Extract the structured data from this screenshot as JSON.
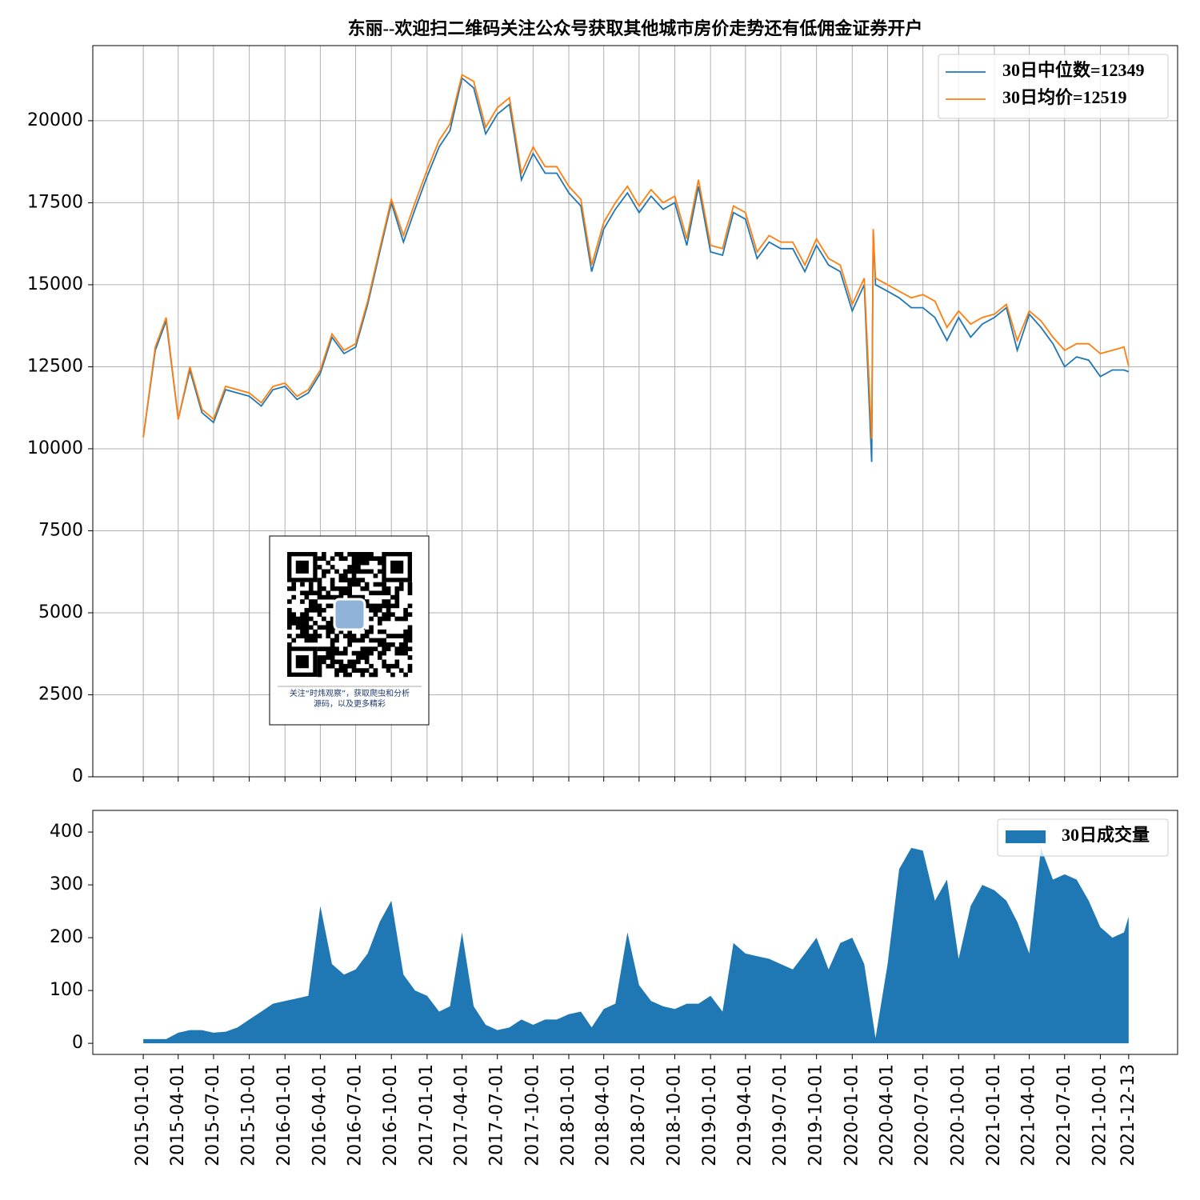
{
  "chart_data": [
    {
      "type": "line",
      "title": "东丽--欢迎扫二维码关注公众号获取其他城市房价走势还有低佣金证券开户",
      "annotation": [
        "关注“时炜观察”，获取爬虫和分析",
        "源码，以及更多精彩"
      ],
      "x": [
        "2015-01-01",
        "2015-02-01",
        "2015-03-01",
        "2015-04-01",
        "2015-05-01",
        "2015-06-01",
        "2015-07-01",
        "2015-08-01",
        "2015-09-01",
        "2015-10-01",
        "2015-11-01",
        "2015-12-01",
        "2016-01-01",
        "2016-02-01",
        "2016-03-01",
        "2016-04-01",
        "2016-05-01",
        "2016-06-01",
        "2016-07-01",
        "2016-08-01",
        "2016-09-01",
        "2016-10-01",
        "2016-11-01",
        "2016-12-01",
        "2017-01-01",
        "2017-02-01",
        "2017-03-01",
        "2017-04-01",
        "2017-05-01",
        "2017-06-01",
        "2017-07-01",
        "2017-08-01",
        "2017-09-01",
        "2017-10-01",
        "2017-11-01",
        "2017-12-01",
        "2018-01-01",
        "2018-02-01",
        "2018-03-01",
        "2018-04-01",
        "2018-05-01",
        "2018-06-01",
        "2018-07-01",
        "2018-08-01",
        "2018-09-01",
        "2018-10-01",
        "2018-11-01",
        "2018-12-01",
        "2019-01-01",
        "2019-02-01",
        "2019-03-01",
        "2019-04-01",
        "2019-05-01",
        "2019-06-01",
        "2019-07-01",
        "2019-08-01",
        "2019-09-01",
        "2019-10-01",
        "2019-11-01",
        "2019-12-01",
        "2020-01-01",
        "2020-02-01",
        "2020-02-20",
        "2020-02-24",
        "2020-03-01",
        "2020-04-01",
        "2020-05-01",
        "2020-06-01",
        "2020-07-01",
        "2020-08-01",
        "2020-09-01",
        "2020-10-01",
        "2020-11-01",
        "2020-12-01",
        "2021-01-01",
        "2021-02-01",
        "2021-03-01",
        "2021-04-01",
        "2021-05-01",
        "2021-06-01",
        "2021-07-01",
        "2021-08-01",
        "2021-09-01",
        "2021-10-01",
        "2021-11-01",
        "2021-12-01",
        "2021-12-13"
      ],
      "series": [
        {
          "name": "30日中位数=12349",
          "color": "#1f77b4",
          "values": [
            10350,
            13000,
            13900,
            10900,
            12400,
            11100,
            10800,
            11800,
            11700,
            11600,
            11300,
            11800,
            11900,
            11500,
            11700,
            12300,
            13400,
            12900,
            13100,
            14400,
            16000,
            17500,
            16300,
            17300,
            18300,
            19200,
            19700,
            21300,
            21000,
            19600,
            20200,
            20500,
            18200,
            19000,
            18400,
            18400,
            17800,
            17400,
            15400,
            16700,
            17300,
            17800,
            17200,
            17700,
            17300,
            17500,
            16200,
            18000,
            16000,
            15900,
            17200,
            17000,
            15800,
            16300,
            16100,
            16100,
            15400,
            16200,
            15600,
            15400,
            14200,
            15000,
            9600,
            16600,
            15000,
            14800,
            14600,
            14300,
            14300,
            14000,
            13300,
            14000,
            13400,
            13800,
            14000,
            14300,
            13000,
            14100,
            13700,
            13200,
            12500,
            12800,
            12700,
            12200,
            12400,
            12400,
            12349
          ]
        },
        {
          "name": "30日均价=12519",
          "color": "#ff7f0e",
          "values": [
            10350,
            13100,
            14000,
            10900,
            12500,
            11200,
            10900,
            11900,
            11800,
            11700,
            11400,
            11900,
            12000,
            11600,
            11800,
            12400,
            13500,
            13000,
            13200,
            14500,
            16100,
            17600,
            16500,
            17500,
            18500,
            19400,
            19900,
            21400,
            21200,
            19800,
            20400,
            20700,
            18400,
            19200,
            18600,
            18600,
            18000,
            17600,
            15600,
            16900,
            17500,
            18000,
            17400,
            17900,
            17500,
            17700,
            16400,
            18200,
            16200,
            16100,
            17400,
            17200,
            16000,
            16500,
            16300,
            16300,
            15600,
            16400,
            15800,
            15600,
            14400,
            15200,
            10300,
            16700,
            15200,
            15000,
            14800,
            14600,
            14700,
            14500,
            13700,
            14200,
            13800,
            14000,
            14100,
            14400,
            13300,
            14200,
            13900,
            13400,
            13000,
            13200,
            13200,
            12900,
            13000,
            13100,
            12519
          ]
        }
      ],
      "xlim": [
        "2014-08-24",
        "2022-04-18"
      ],
      "xticks": [
        "2015-01-01",
        "2015-04-01",
        "2015-07-01",
        "2015-10-01",
        "2016-01-01",
        "2016-04-01",
        "2016-07-01",
        "2016-10-01",
        "2017-01-01",
        "2017-04-01",
        "2017-07-01",
        "2017-10-01",
        "2018-01-01",
        "2018-04-01",
        "2018-07-01",
        "2018-10-01",
        "2019-01-01",
        "2019-04-01",
        "2019-07-01",
        "2019-10-01",
        "2020-01-01",
        "2020-04-01",
        "2020-07-01",
        "2020-10-01",
        "2021-01-01",
        "2021-04-01",
        "2021-07-01",
        "2021-10-01",
        "2021-12-13"
      ],
      "ylim": [
        0,
        22290
      ],
      "yticks": [
        0,
        2500,
        5000,
        7500,
        10000,
        12500,
        15000,
        17500,
        20000
      ],
      "grid": true,
      "legend": "upper right"
    },
    {
      "type": "area",
      "x": [
        "2015-01-01",
        "2015-02-01",
        "2015-03-01",
        "2015-04-01",
        "2015-05-01",
        "2015-06-01",
        "2015-07-01",
        "2015-08-01",
        "2015-09-01",
        "2015-10-01",
        "2015-11-01",
        "2015-12-01",
        "2016-01-01",
        "2016-02-01",
        "2016-03-01",
        "2016-04-01",
        "2016-05-01",
        "2016-06-01",
        "2016-07-01",
        "2016-08-01",
        "2016-09-01",
        "2016-10-01",
        "2016-11-01",
        "2016-12-01",
        "2017-01-01",
        "2017-02-01",
        "2017-03-01",
        "2017-04-01",
        "2017-05-01",
        "2017-06-01",
        "2017-07-01",
        "2017-08-01",
        "2017-09-01",
        "2017-10-01",
        "2017-11-01",
        "2017-12-01",
        "2018-01-01",
        "2018-02-01",
        "2018-03-01",
        "2018-04-01",
        "2018-05-01",
        "2018-06-01",
        "2018-07-01",
        "2018-08-01",
        "2018-09-01",
        "2018-10-01",
        "2018-11-01",
        "2018-12-01",
        "2019-01-01",
        "2019-02-01",
        "2019-03-01",
        "2019-04-01",
        "2019-05-01",
        "2019-06-01",
        "2019-07-01",
        "2019-08-01",
        "2019-09-01",
        "2019-10-01",
        "2019-11-01",
        "2019-12-01",
        "2020-01-01",
        "2020-02-01",
        "2020-03-01",
        "2020-04-01",
        "2020-05-01",
        "2020-06-01",
        "2020-07-01",
        "2020-08-01",
        "2020-09-01",
        "2020-10-01",
        "2020-11-01",
        "2020-12-01",
        "2021-01-01",
        "2021-02-01",
        "2021-03-01",
        "2021-04-01",
        "2021-05-01",
        "2021-06-01",
        "2021-07-01",
        "2021-08-01",
        "2021-09-01",
        "2021-10-01",
        "2021-11-01",
        "2021-12-01",
        "2021-12-13"
      ],
      "series": [
        {
          "name": "30日成交量",
          "color": "#1f77b4",
          "values": [
            8,
            8,
            8,
            20,
            25,
            25,
            20,
            22,
            30,
            45,
            60,
            75,
            80,
            85,
            90,
            260,
            150,
            130,
            140,
            170,
            230,
            270,
            130,
            100,
            90,
            60,
            70,
            210,
            70,
            35,
            25,
            30,
            45,
            35,
            45,
            45,
            55,
            60,
            30,
            65,
            75,
            210,
            110,
            80,
            70,
            65,
            75,
            75,
            90,
            60,
            190,
            170,
            165,
            160,
            150,
            140,
            170,
            200,
            140,
            190,
            200,
            150,
            10,
            150,
            330,
            370,
            365,
            270,
            310,
            160,
            260,
            300,
            290,
            270,
            230,
            170,
            370,
            310,
            320,
            310,
            270,
            220,
            200,
            210,
            240
          ]
        }
      ],
      "xlim": [
        "2014-08-24",
        "2022-04-18"
      ],
      "xticks": [
        "2015-01-01",
        "2015-04-01",
        "2015-07-01",
        "2015-10-01",
        "2016-01-01",
        "2016-04-01",
        "2016-07-01",
        "2016-10-01",
        "2017-01-01",
        "2017-04-01",
        "2017-07-01",
        "2017-10-01",
        "2018-01-01",
        "2018-04-01",
        "2018-07-01",
        "2018-10-01",
        "2019-01-01",
        "2019-04-01",
        "2019-07-01",
        "2019-10-01",
        "2020-01-01",
        "2020-04-01",
        "2020-07-01",
        "2020-10-01",
        "2021-01-01",
        "2021-04-01",
        "2021-07-01",
        "2021-10-01",
        "2021-12-13"
      ],
      "ylim": [
        -21,
        441
      ],
      "yticks": [
        0,
        100,
        200,
        300,
        400
      ],
      "grid": false,
      "legend": "upper right"
    }
  ]
}
